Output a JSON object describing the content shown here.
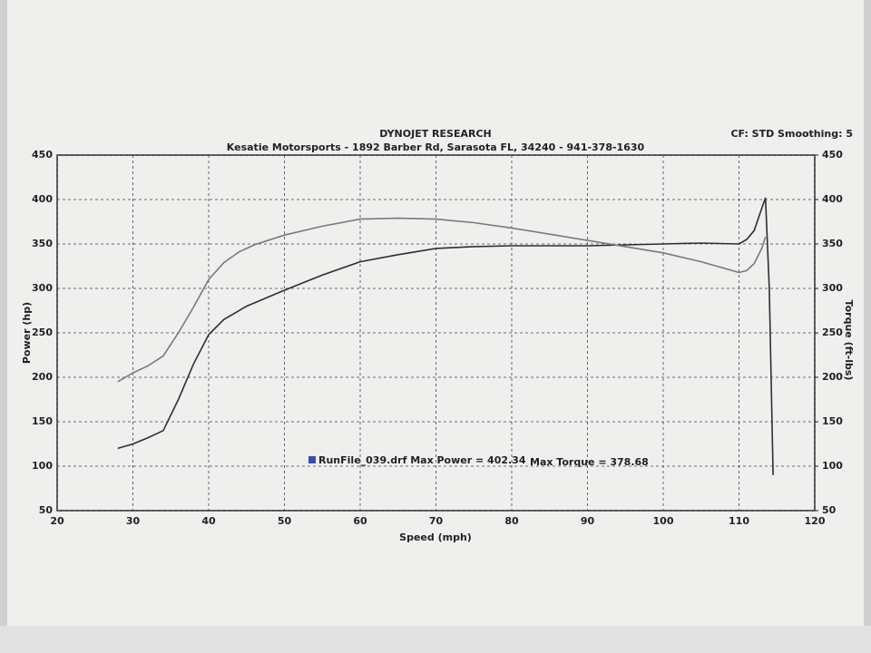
{
  "chart_data": {
    "type": "line",
    "title": "DYNOJET RESEARCH",
    "subtitle": "Kesatie Motorsports - 1892 Barber Rd, Sarasota FL, 34240 - 941-378-1630",
    "settings_label": "CF: STD  Smoothing: 5",
    "x_label": "Speed (mph)",
    "y_label": "Power (hp)",
    "y2_label": "Torque (ft-lbs)",
    "annotations": [
      "RunFile_039.drf Max Power = 402.34",
      "Max Torque = 378.68"
    ],
    "legend_color": "#3a4ea8",
    "xlim": [
      20,
      120
    ],
    "xticks": [
      20,
      30,
      40,
      50,
      60,
      70,
      80,
      90,
      100,
      110,
      120
    ],
    "ylim": [
      50,
      450
    ],
    "yticks": [
      50,
      100,
      150,
      200,
      250,
      300,
      350,
      400,
      450
    ],
    "y2lim": [
      50,
      450
    ],
    "y2ticks": [
      50,
      100,
      150,
      200,
      250,
      300,
      350,
      400,
      450
    ],
    "grid": true,
    "series": [
      {
        "color": "#2f2f2f",
        "x": [
          28,
          30,
          32,
          34,
          36,
          38,
          40,
          42,
          45,
          50,
          55,
          60,
          65,
          70,
          75,
          80,
          85,
          90,
          95,
          100,
          105,
          110,
          111,
          112,
          113,
          113.5,
          114,
          114.5
        ],
        "values": [
          120,
          125,
          132,
          140,
          175,
          215,
          248,
          265,
          280,
          298,
          315,
          330,
          338,
          345,
          347,
          348,
          348,
          348,
          349,
          350,
          351,
          350,
          355,
          365,
          390,
          402,
          300,
          90
        ]
      },
      {
        "color": "#7a7a7a",
        "axis": "y2",
        "x": [
          28,
          30,
          32,
          34,
          36,
          38,
          40,
          42,
          44,
          46,
          50,
          55,
          60,
          65,
          70,
          75,
          80,
          85,
          90,
          95,
          100,
          105,
          110,
          111,
          112,
          113,
          113.5
        ],
        "values": [
          195,
          205,
          213,
          224,
          250,
          279,
          310,
          329,
          341,
          349,
          360,
          370,
          378,
          379,
          378,
          374,
          368,
          361,
          354,
          347,
          340,
          330,
          318,
          320,
          328,
          345,
          358
        ]
      }
    ]
  }
}
